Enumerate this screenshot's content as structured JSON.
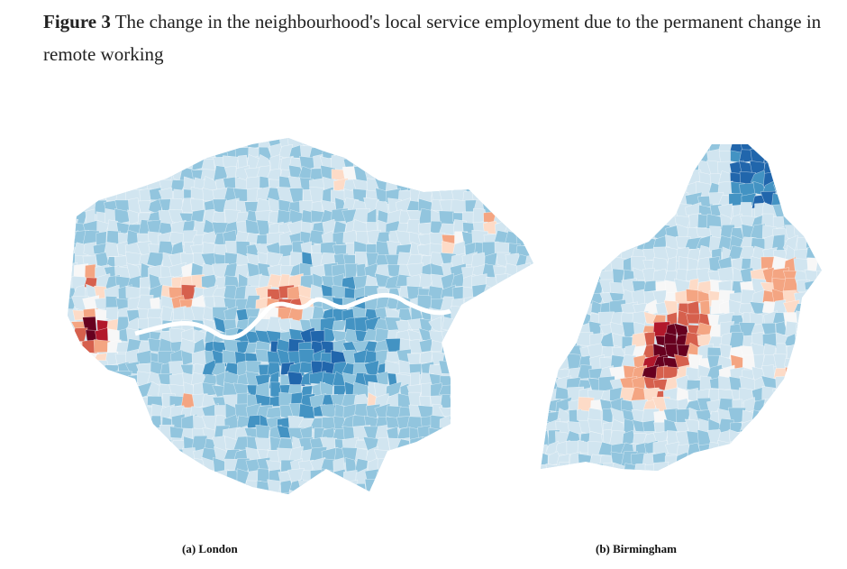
{
  "figure": {
    "label": "Figure 3",
    "title": "The change in the neighbourhood's local service employment due to the permanent change in remote working"
  },
  "panels": [
    {
      "caption": "(a) London"
    },
    {
      "caption": "(b) Birmingham"
    }
  ],
  "palette": {
    "dark_red": "#67001f",
    "red": "#b2182b",
    "orange_red": "#d6604d",
    "salmon": "#f4a582",
    "peach": "#fddbc7",
    "neutral": "#f7f7f7",
    "pale_blue": "#d1e5f0",
    "light_blue": "#92c5de",
    "blue": "#4393c3",
    "dark_blue": "#2166ac"
  }
}
